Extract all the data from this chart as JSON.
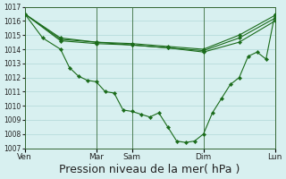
{
  "bg_color": "#d8f0f0",
  "grid_color": "#b0d8d8",
  "line_color": "#1a6b1a",
  "ylim": [
    1007,
    1017
  ],
  "yticks": [
    1007,
    1008,
    1009,
    1010,
    1011,
    1012,
    1013,
    1014,
    1015,
    1016,
    1017
  ],
  "xlabel": "Pression niveau de la mer( hPa )",
  "xlabel_fontsize": 9,
  "day_labels": [
    "Ven",
    "Mar",
    "Sam",
    "Dim",
    "Lun"
  ],
  "day_positions": [
    0,
    8,
    12,
    20,
    28
  ],
  "main_x": [
    0,
    2,
    4,
    5,
    6,
    7,
    8,
    9,
    10,
    11,
    12,
    13,
    14,
    15,
    16,
    17,
    18,
    19,
    20,
    21,
    22,
    23,
    24,
    25,
    26,
    27,
    28
  ],
  "main_y": [
    1016.5,
    1014.8,
    1014.0,
    1012.7,
    1012.1,
    1011.8,
    1011.7,
    1011.0,
    1010.9,
    1009.7,
    1009.6,
    1009.4,
    1009.2,
    1009.5,
    1008.5,
    1007.5,
    1007.4,
    1007.5,
    1008.0,
    1009.5,
    1010.5,
    1011.5,
    1012.0,
    1013.5,
    1013.8,
    1013.3,
    1016.5
  ],
  "flat1_x": [
    0,
    4,
    8,
    12,
    16,
    20,
    24,
    28
  ],
  "flat1_y": [
    1016.5,
    1014.8,
    1014.5,
    1014.3,
    1014.1,
    1013.9,
    1014.8,
    1016.2
  ],
  "flat2_x": [
    0,
    4,
    8,
    12,
    16,
    20,
    24,
    28
  ],
  "flat2_y": [
    1016.5,
    1014.7,
    1014.5,
    1014.4,
    1014.2,
    1014.0,
    1015.0,
    1016.4
  ],
  "flat3_x": [
    0,
    4,
    8,
    12,
    16,
    20,
    24,
    28
  ],
  "flat3_y": [
    1016.5,
    1014.6,
    1014.4,
    1014.3,
    1014.1,
    1013.8,
    1014.5,
    1016.0
  ]
}
